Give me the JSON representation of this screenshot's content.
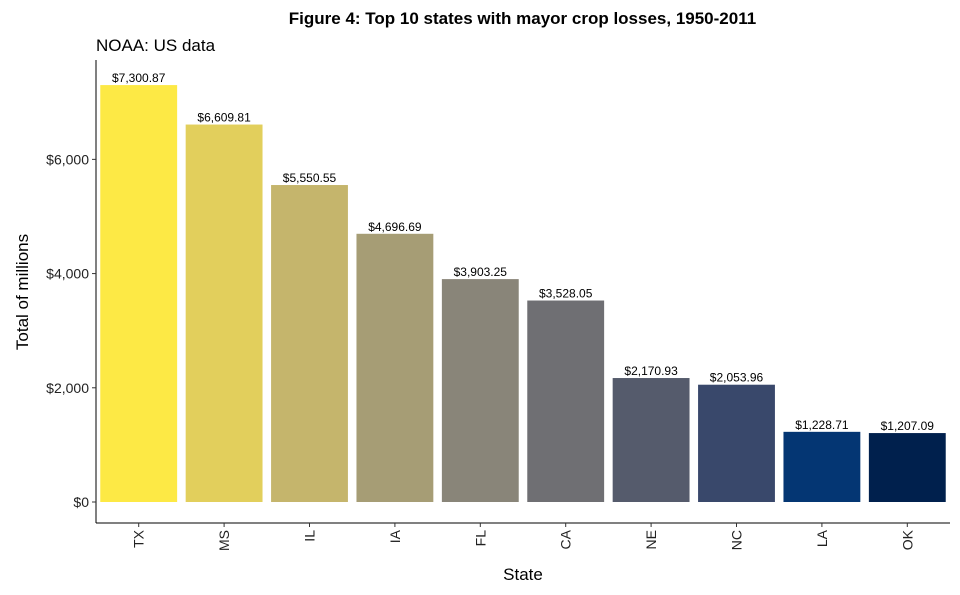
{
  "chart_data": {
    "type": "bar",
    "title": "Figure 4: Top 10 states with mayor crop losses, 1950-2011",
    "subtitle": "NOAA: US data",
    "xlabel": "State",
    "ylabel": "Total of millions",
    "categories": [
      "TX",
      "MS",
      "IL",
      "IA",
      "FL",
      "CA",
      "NE",
      "NC",
      "LA",
      "OK"
    ],
    "values": [
      7300.87,
      6609.81,
      5550.55,
      4696.69,
      3903.25,
      3528.05,
      2170.93,
      2053.96,
      1228.71,
      1207.09
    ],
    "data_labels": [
      "$7,300.87",
      "$6,609.81",
      "$5,550.55",
      "$4,696.69",
      "$3,903.25",
      "$3,528.05",
      "$2,170.93",
      "$2,053.96",
      "$1,228.71",
      "$1,207.09"
    ],
    "colors": [
      "#FDE945",
      "#E2CF5C",
      "#C5B56C",
      "#A69D75",
      "#898579",
      "#6F6F73",
      "#555B6C",
      "#39486B",
      "#043673",
      "#00204D"
    ],
    "yticks": [
      0,
      2000,
      4000,
      6000
    ],
    "ytick_labels": [
      "$0",
      "$2,000",
      "$4,000",
      "$6,000"
    ],
    "ylim": [
      0,
      7600
    ],
    "grid": false,
    "legend": "none"
  }
}
